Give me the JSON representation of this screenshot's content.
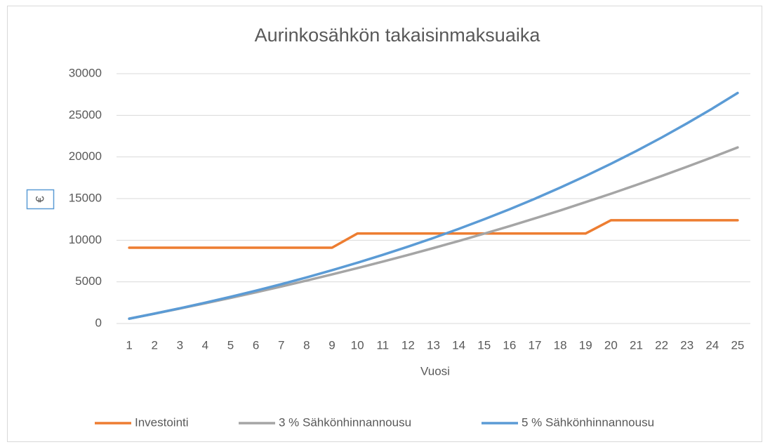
{
  "chart_data": {
    "type": "line",
    "title": "Aurinkosähkön takaisinmaksuaika",
    "x_label": "Vuosi",
    "y_label": "€",
    "categories": [
      "1",
      "2",
      "3",
      "4",
      "5",
      "6",
      "7",
      "8",
      "9",
      "10",
      "11",
      "12",
      "13",
      "14",
      "15",
      "16",
      "17",
      "18",
      "19",
      "20",
      "21",
      "22",
      "23",
      "24",
      "25"
    ],
    "series": [
      {
        "name": "Investointi",
        "color": "#ed7d31",
        "values": [
          9100,
          9100,
          9100,
          9100,
          9100,
          9100,
          9100,
          9100,
          9100,
          10800,
          10800,
          10800,
          10800,
          10800,
          10800,
          10800,
          10800,
          10800,
          10800,
          12400,
          12400,
          12400,
          12400,
          12400,
          12400
        ]
      },
      {
        "name": "3 % Sähkönhinnannousu",
        "color": "#a5a5a5",
        "values": [
          580,
          1177,
          1793,
          2426,
          3079,
          3752,
          4444,
          5158,
          5892,
          6649,
          7429,
          8231,
          9058,
          9910,
          10787,
          11691,
          12622,
          13580,
          14568,
          15585,
          16632,
          17711,
          18823,
          19967,
          21146
        ]
      },
      {
        "name": "5 % Sähkönhinnannousu",
        "color": "#5b9bd5",
        "values": [
          580,
          1189,
          1828,
          2500,
          3205,
          3945,
          4722,
          5538,
          6395,
          7295,
          8240,
          9232,
          10274,
          11367,
          12516,
          13721,
          14987,
          16317,
          17713,
          19178,
          20717,
          22333,
          24030,
          25811,
          27682
        ]
      }
    ],
    "ylim": [
      0,
      30000
    ],
    "yticks": [
      0,
      5000,
      10000,
      15000,
      20000,
      25000,
      30000
    ],
    "grid": true,
    "legend": "bottom"
  }
}
